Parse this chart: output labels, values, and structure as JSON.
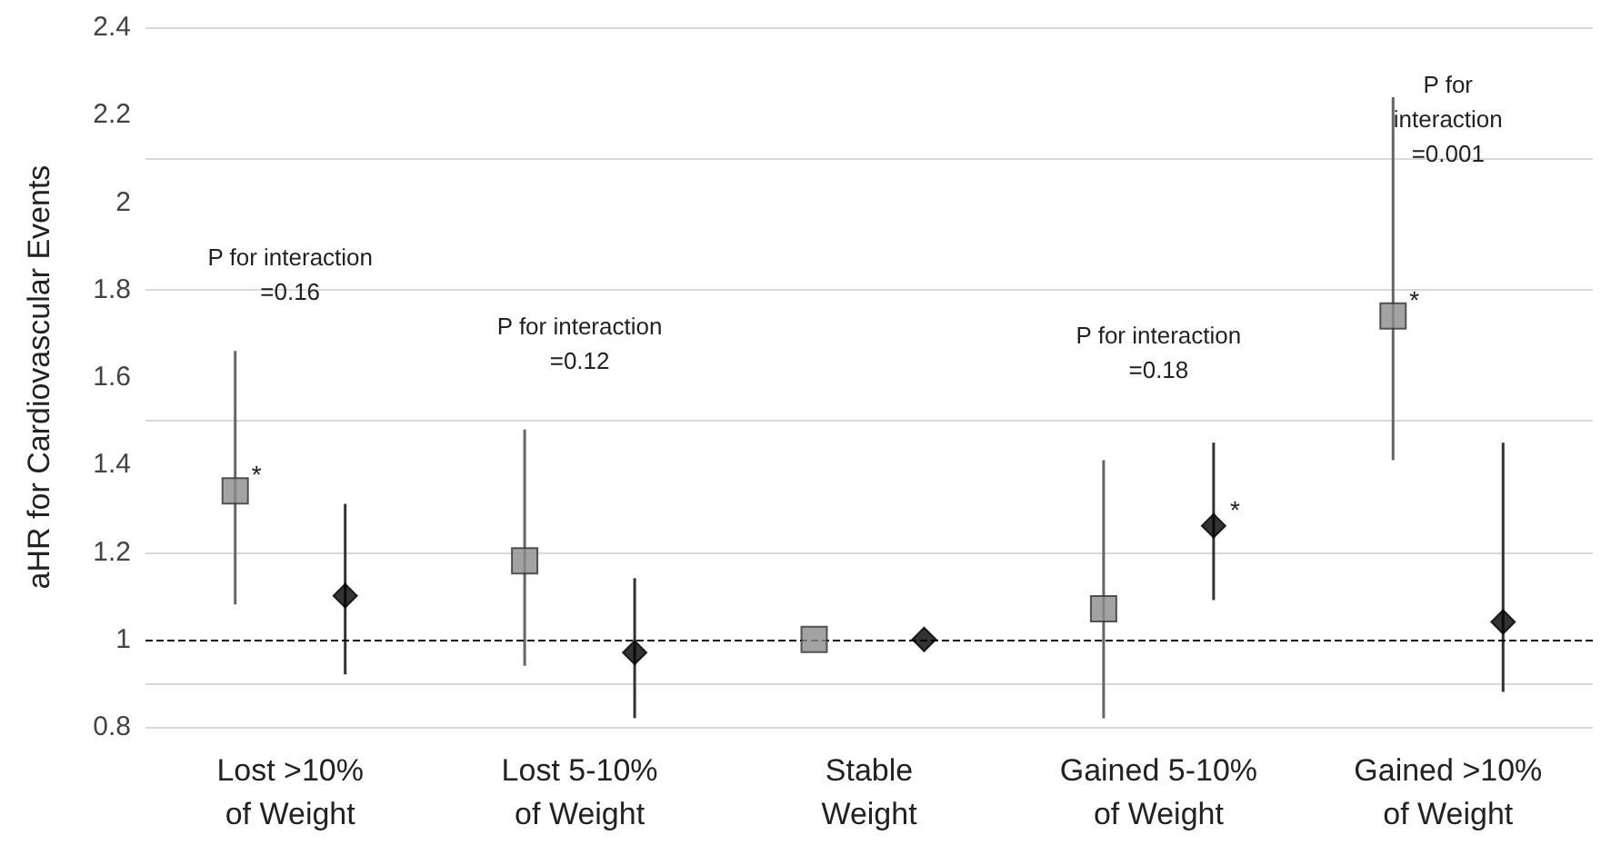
{
  "chart_data": {
    "type": "scatter",
    "ylabel": "aHR for Cardiovascular Events",
    "categories": [
      "Lost >10%\nof Weight",
      "Lost 5-10%\nof Weight",
      "Stable\nWeight",
      "Gained 5-10%\nof Weight",
      "Gained >10%\nof Weight"
    ],
    "series": [
      {
        "color": "#8c8c8c",
        "marker": "square",
        "values": [
          1.34,
          1.18,
          1,
          1.07,
          1.74
        ],
        "errors": [
          [
            1.08,
            1.66
          ],
          [
            0.94,
            1.48
          ],
          null,
          [
            0.82,
            1.41
          ],
          [
            1.41,
            2.24
          ]
        ]
      },
      {
        "color": "#000000",
        "marker": "diamond",
        "values": [
          1.1,
          0.97,
          1,
          1.26,
          1.04
        ],
        "errors": [
          [
            0.92,
            1.31
          ],
          [
            0.82,
            1.14
          ],
          null,
          [
            1.09,
            1.45
          ],
          [
            0.88,
            1.45
          ]
        ]
      }
    ],
    "ylim": [
      0.8,
      2.4
    ],
    "yticks": [
      0.8,
      1,
      1.2,
      1.4,
      1.6,
      1.8,
      2,
      2.2,
      2.4
    ],
    "grid": "y",
    "ref_lines": [
      {
        "axis": "y",
        "value": 1,
        "color": "#000000",
        "line_style": "dashed"
      }
    ],
    "annotations": [
      "P for interaction\n=0.16",
      "P for interaction\n=0.12",
      "P for interaction\n=0.18",
      "P for\ninteraction\n=0.001",
      "*",
      "*",
      "*"
    ]
  }
}
